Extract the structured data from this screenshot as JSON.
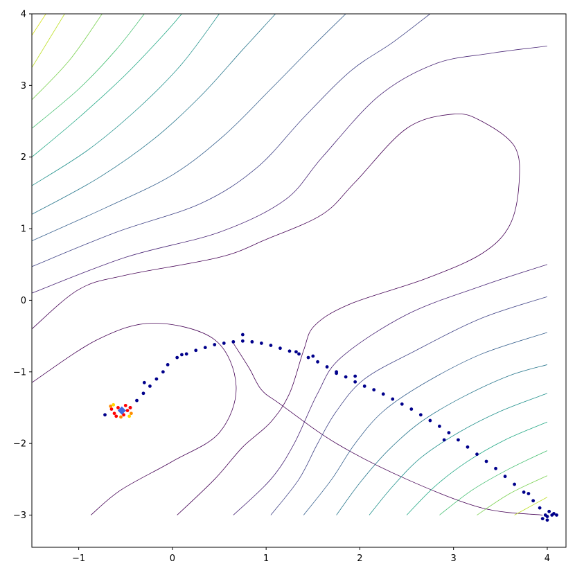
{
  "chart_data": {
    "type": "scatter",
    "title": "",
    "xlabel": "",
    "ylabel": "",
    "xlim": [
      -1.5,
      4.2
    ],
    "ylim": [
      -3.45,
      4.0
    ],
    "xticks": [
      -1,
      0,
      1,
      2,
      3,
      4
    ],
    "xtick_labels": [
      "−1",
      "0",
      "1",
      "2",
      "3",
      "4"
    ],
    "yticks": [
      -3,
      -2,
      -1,
      0,
      1,
      2,
      3,
      4
    ],
    "ytick_labels": [
      "−3",
      "−2",
      "−1",
      "0",
      "1",
      "2",
      "3",
      "4"
    ],
    "grid": false,
    "contour_colormap": "viridis",
    "contour_level_count": 15,
    "contour_levels": [
      {
        "level": 1,
        "color": "#440154",
        "points": [
          [
            -1.5,
            -1.15
          ],
          [
            -0.8,
            -0.55
          ],
          [
            -0.2,
            -0.32
          ],
          [
            0.45,
            -0.55
          ],
          [
            0.68,
            -1.2
          ],
          [
            0.5,
            -1.85
          ],
          [
            0.0,
            -2.25
          ],
          [
            -0.55,
            -2.65
          ],
          [
            -0.87,
            -3.0
          ]
        ]
      },
      {
        "level": 1,
        "color": "#440154",
        "points": [
          [
            0.65,
            -0.6
          ],
          [
            0.82,
            -0.95
          ],
          [
            0.95,
            -1.25
          ],
          [
            1.15,
            -1.45
          ],
          [
            1.75,
            -2.0
          ],
          [
            2.5,
            -2.5
          ],
          [
            3.3,
            -2.9
          ],
          [
            3.95,
            -3.0
          ]
        ]
      },
      {
        "level": 1,
        "color": "#440154",
        "points": [
          [
            0.05,
            -3.0
          ],
          [
            0.45,
            -2.5
          ],
          [
            0.75,
            -2.05
          ],
          [
            1.05,
            -1.7
          ],
          [
            1.25,
            -1.3
          ],
          [
            1.4,
            -0.7
          ],
          [
            1.52,
            -0.35
          ],
          [
            1.9,
            -0.05
          ],
          [
            2.7,
            0.3
          ],
          [
            3.3,
            0.65
          ],
          [
            3.6,
            1.05
          ],
          [
            3.7,
            1.65
          ],
          [
            3.65,
            2.15
          ],
          [
            3.3,
            2.5
          ],
          [
            3.0,
            2.6
          ],
          [
            2.5,
            2.4
          ],
          [
            1.95,
            1.65
          ],
          [
            1.6,
            1.2
          ],
          [
            1.0,
            0.85
          ],
          [
            0.5,
            0.6
          ],
          [
            -0.5,
            0.35
          ],
          [
            -1.0,
            0.15
          ],
          [
            -1.5,
            -0.4
          ]
        ]
      },
      {
        "level": 2,
        "color": "#482475",
        "points": [
          [
            0.65,
            -3.0
          ],
          [
            1.05,
            -2.5
          ],
          [
            1.3,
            -2.0
          ],
          [
            1.55,
            -1.3
          ],
          [
            1.8,
            -0.8
          ],
          [
            2.5,
            -0.2
          ],
          [
            3.3,
            0.2
          ],
          [
            4.0,
            0.5
          ]
        ]
      },
      {
        "level": 2,
        "color": "#482475",
        "points": [
          [
            -1.5,
            0.1
          ],
          [
            -0.5,
            0.6
          ],
          [
            0.5,
            0.95
          ],
          [
            1.2,
            1.4
          ],
          [
            1.6,
            2.0
          ],
          [
            2.2,
            2.85
          ],
          [
            2.8,
            3.3
          ],
          [
            3.4,
            3.45
          ],
          [
            4.0,
            3.55
          ]
        ]
      },
      {
        "level": 3,
        "color": "#414487",
        "points": [
          [
            1.05,
            -3.0
          ],
          [
            1.35,
            -2.5
          ],
          [
            1.55,
            -2.0
          ],
          [
            1.75,
            -1.55
          ],
          [
            2.05,
            -1.1
          ],
          [
            2.6,
            -0.7
          ],
          [
            3.3,
            -0.25
          ],
          [
            4.0,
            0.05
          ]
        ]
      },
      {
        "level": 3,
        "color": "#414487",
        "points": [
          [
            -1.5,
            0.47
          ],
          [
            -0.6,
            0.95
          ],
          [
            0.3,
            1.35
          ],
          [
            0.9,
            1.85
          ],
          [
            1.4,
            2.55
          ],
          [
            1.9,
            3.2
          ],
          [
            2.35,
            3.6
          ],
          [
            2.75,
            4.0
          ]
        ]
      },
      {
        "level": 4,
        "color": "#355f8d",
        "points": [
          [
            1.4,
            -3.0
          ],
          [
            1.7,
            -2.5
          ],
          [
            1.95,
            -2.0
          ],
          [
            2.25,
            -1.55
          ],
          [
            2.7,
            -1.15
          ],
          [
            3.3,
            -0.75
          ],
          [
            4.0,
            -0.45
          ]
        ]
      },
      {
        "level": 4,
        "color": "#355f8d",
        "points": [
          [
            -1.5,
            0.83
          ],
          [
            -0.7,
            1.3
          ],
          [
            0.0,
            1.75
          ],
          [
            0.55,
            2.3
          ],
          [
            1.05,
            2.95
          ],
          [
            1.5,
            3.55
          ],
          [
            1.85,
            4.0
          ]
        ]
      },
      {
        "level": 5,
        "color": "#2a788e",
        "points": [
          [
            1.75,
            -3.0
          ],
          [
            2.0,
            -2.55
          ],
          [
            2.3,
            -2.1
          ],
          [
            2.65,
            -1.7
          ],
          [
            3.1,
            -1.35
          ],
          [
            3.6,
            -1.05
          ],
          [
            4.0,
            -0.9
          ]
        ]
      },
      {
        "level": 5,
        "color": "#2a788e",
        "points": [
          [
            -1.5,
            1.2
          ],
          [
            -0.8,
            1.7
          ],
          [
            -0.2,
            2.25
          ],
          [
            0.3,
            2.85
          ],
          [
            0.75,
            3.5
          ],
          [
            1.1,
            4.0
          ]
        ]
      },
      {
        "level": 6,
        "color": "#21918c",
        "points": [
          [
            2.1,
            -3.0
          ],
          [
            2.35,
            -2.6
          ],
          [
            2.65,
            -2.2
          ],
          [
            3.05,
            -1.85
          ],
          [
            3.5,
            -1.55
          ],
          [
            4.0,
            -1.3
          ]
        ]
      },
      {
        "level": 6,
        "color": "#21918c",
        "points": [
          [
            -1.5,
            1.6
          ],
          [
            -0.9,
            2.1
          ],
          [
            -0.35,
            2.7
          ],
          [
            0.1,
            3.3
          ],
          [
            0.5,
            4.0
          ]
        ]
      },
      {
        "level": 7,
        "color": "#22a884",
        "points": [
          [
            2.5,
            -3.0
          ],
          [
            2.8,
            -2.6
          ],
          [
            3.15,
            -2.25
          ],
          [
            3.55,
            -1.95
          ],
          [
            4.0,
            -1.7
          ]
        ]
      },
      {
        "level": 7,
        "color": "#22a884",
        "points": [
          [
            -1.5,
            2.0
          ],
          [
            -1.0,
            2.55
          ],
          [
            -0.5,
            3.15
          ],
          [
            -0.1,
            3.7
          ],
          [
            0.1,
            4.0
          ]
        ]
      },
      {
        "level": 8,
        "color": "#44bf70",
        "points": [
          [
            2.85,
            -3.0
          ],
          [
            3.2,
            -2.65
          ],
          [
            3.6,
            -2.35
          ],
          [
            4.0,
            -2.1
          ]
        ]
      },
      {
        "level": 8,
        "color": "#44bf70",
        "points": [
          [
            -1.5,
            2.4
          ],
          [
            -1.0,
            2.95
          ],
          [
            -0.6,
            3.5
          ],
          [
            -0.3,
            4.0
          ]
        ]
      },
      {
        "level": 9,
        "color": "#7ad151",
        "points": [
          [
            3.25,
            -3.0
          ],
          [
            3.6,
            -2.7
          ],
          [
            4.0,
            -2.45
          ]
        ]
      },
      {
        "level": 9,
        "color": "#7ad151",
        "points": [
          [
            -1.5,
            2.8
          ],
          [
            -1.1,
            3.35
          ],
          [
            -0.75,
            4.0
          ]
        ]
      },
      {
        "level": 10,
        "color": "#bddf26",
        "points": [
          [
            3.65,
            -3.0
          ],
          [
            4.0,
            -2.75
          ]
        ]
      },
      {
        "level": 10,
        "color": "#bddf26",
        "points": [
          [
            -1.5,
            3.25
          ],
          [
            -1.15,
            4.0
          ]
        ]
      },
      {
        "level": 11,
        "color": "#d8e219",
        "points": [
          [
            -1.5,
            3.7
          ],
          [
            -1.35,
            4.0
          ]
        ]
      }
    ],
    "series": [
      {
        "color": "#00008b",
        "marker": "o",
        "points": [
          [
            -0.55,
            -1.55
          ],
          [
            -0.45,
            -1.5
          ],
          [
            -0.38,
            -1.4
          ],
          [
            -0.31,
            -1.3
          ],
          [
            -0.24,
            -1.2
          ],
          [
            -0.17,
            -1.1
          ],
          [
            -0.1,
            -1.0
          ],
          [
            -0.05,
            -0.9
          ],
          [
            0.05,
            -0.8
          ],
          [
            0.15,
            -0.75
          ],
          [
            0.25,
            -0.7
          ],
          [
            0.35,
            -0.66
          ],
          [
            0.45,
            -0.62
          ],
          [
            0.55,
            -0.6
          ],
          [
            0.65,
            -0.58
          ],
          [
            0.75,
            -0.57
          ],
          [
            0.85,
            -0.58
          ],
          [
            0.95,
            -0.6
          ],
          [
            1.05,
            -0.63
          ],
          [
            1.15,
            -0.67
          ],
          [
            1.25,
            -0.71
          ],
          [
            1.35,
            -0.75
          ],
          [
            1.45,
            -0.8
          ],
          [
            1.55,
            -0.86
          ],
          [
            1.65,
            -0.93
          ],
          [
            1.75,
            -1.0
          ],
          [
            1.85,
            -1.07
          ],
          [
            1.95,
            -1.14
          ],
          [
            2.05,
            -1.2
          ],
          [
            2.15,
            -1.25
          ],
          [
            2.25,
            -1.31
          ],
          [
            2.35,
            -1.38
          ],
          [
            2.45,
            -1.45
          ],
          [
            2.55,
            -1.52
          ],
          [
            2.65,
            -1.6
          ],
          [
            2.75,
            -1.68
          ],
          [
            2.85,
            -1.76
          ],
          [
            2.95,
            -1.85
          ],
          [
            3.05,
            -1.95
          ],
          [
            3.15,
            -2.05
          ],
          [
            3.25,
            -2.15
          ],
          [
            3.35,
            -2.25
          ],
          [
            3.45,
            -2.35
          ],
          [
            3.55,
            -2.46
          ],
          [
            3.65,
            -2.57
          ],
          [
            3.75,
            -2.68
          ],
          [
            3.85,
            -2.8
          ],
          [
            3.92,
            -2.9
          ],
          [
            3.98,
            -3.0
          ],
          [
            4.0,
            -3.02
          ],
          [
            4.05,
            -3.0
          ],
          [
            4.1,
            -3.0
          ],
          [
            4.02,
            -2.95
          ],
          [
            3.95,
            -3.05
          ],
          [
            4.0,
            -3.07
          ],
          [
            0.75,
            -0.48
          ],
          [
            0.1,
            -0.76
          ],
          [
            -0.3,
            -1.15
          ],
          [
            1.32,
            -0.72
          ],
          [
            1.5,
            -0.78
          ],
          [
            1.75,
            -1.02
          ],
          [
            1.95,
            -1.06
          ],
          [
            2.9,
            -1.95
          ],
          [
            3.8,
            -2.7
          ],
          [
            4.07,
            -2.98
          ],
          [
            -0.72,
            -1.6
          ]
        ]
      },
      {
        "color": "#ff0000",
        "marker": "o",
        "points": [
          [
            -0.65,
            -1.52
          ],
          [
            -0.62,
            -1.58
          ],
          [
            -0.58,
            -1.5
          ],
          [
            -0.52,
            -1.6
          ],
          [
            -0.48,
            -1.54
          ],
          [
            -0.45,
            -1.5
          ],
          [
            -0.5,
            -1.47
          ],
          [
            -0.6,
            -1.62
          ]
        ]
      },
      {
        "color": "#ff8c00",
        "marker": "o",
        "points": [
          [
            -0.66,
            -1.48
          ],
          [
            -0.44,
            -1.58
          ],
          [
            -0.55,
            -1.63
          ]
        ]
      },
      {
        "color": "#ffd700",
        "marker": "o",
        "points": [
          [
            -0.63,
            -1.46
          ],
          [
            -0.46,
            -1.62
          ]
        ]
      },
      {
        "color": "#4169e1",
        "marker": "D",
        "points": [
          [
            -0.54,
            -1.54
          ]
        ]
      }
    ]
  }
}
